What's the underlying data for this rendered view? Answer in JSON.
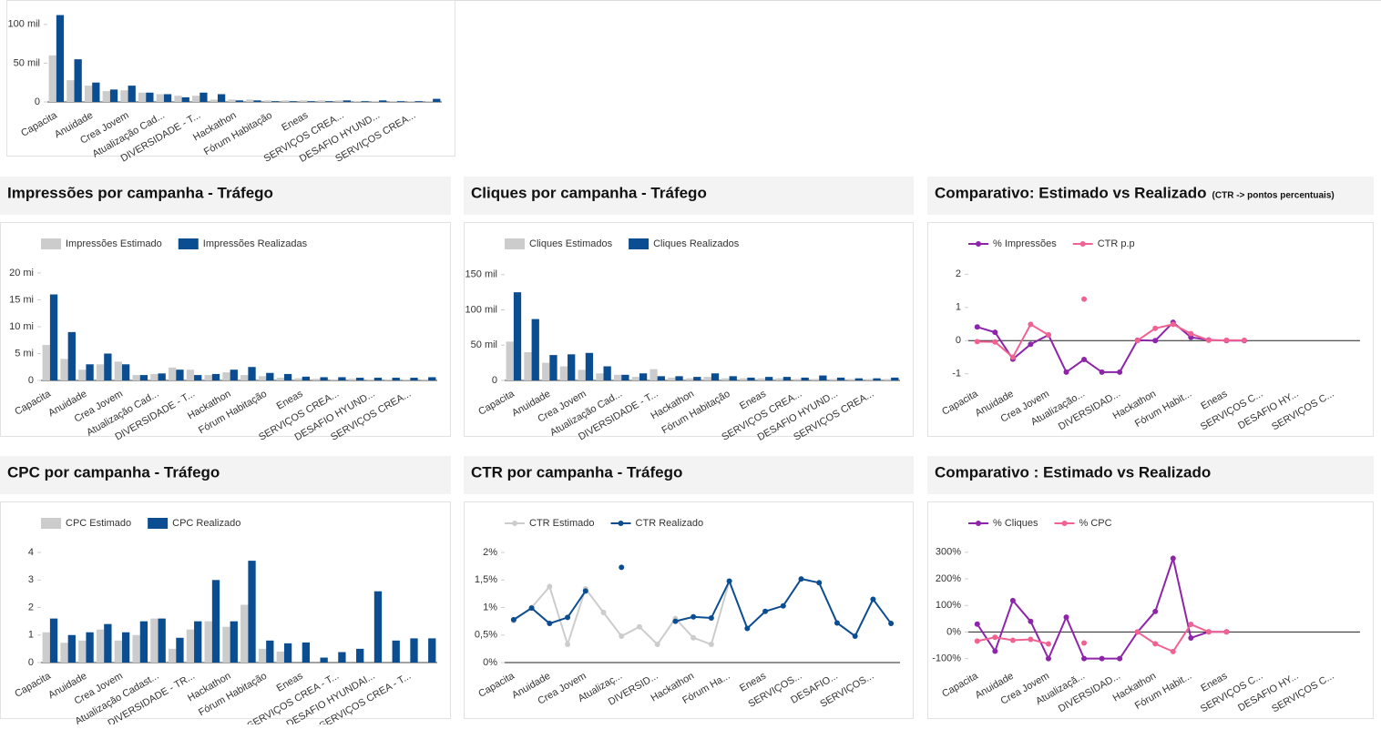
{
  "chart_data": [
    {
      "type": "bar",
      "categories": [
        "Capacita",
        null,
        "Anuidade",
        null,
        "Crea Jovem",
        null,
        "Atualização Cad...",
        null,
        "DIVERSIDADE - T...",
        null,
        "Hackathon",
        null,
        "Fórum Habitação",
        null,
        "Eneas",
        null,
        "SERVIÇOS CREA...",
        null,
        "DESAFIO HYUND...",
        null,
        "SERVIÇOS CREA...",
        null
      ],
      "series": [
        {
          "name": "Impressões Estimado",
          "color": "#cccccc",
          "values": [
            60000,
            28000,
            21000,
            14000,
            15000,
            12000,
            10000,
            8000,
            8000,
            3000,
            3000,
            3000,
            2000,
            2000,
            2000,
            2000,
            2000,
            1000,
            1000,
            1000,
            1000,
            1000
          ]
        },
        {
          "name": "Impressões Realizadas",
          "color": "#0b4d91",
          "values": [
            112000,
            55000,
            25000,
            16000,
            21000,
            12000,
            10000,
            6000,
            12000,
            10000,
            2000,
            2000,
            1000,
            1000,
            1000,
            1000,
            2000,
            1000,
            2000,
            1000,
            1000,
            4000
          ]
        }
      ],
      "ylim": [
        0,
        115000
      ],
      "yticks": [
        0,
        {
          "value": 50000,
          "label": "50 mil"
        },
        {
          "value": 100000,
          "label": "100 mil"
        }
      ]
    },
    {
      "type": "bar",
      "title": "Impressões por campanha - Tráfego",
      "categories": [
        "Capacita",
        null,
        "Anuidade",
        null,
        "Crea Jovem",
        null,
        "Atualização Cad...",
        null,
        "DIVERSIDADE - T...",
        null,
        "Hackathon",
        null,
        "Fórum Habitação",
        null,
        "Eneas",
        null,
        "SERVIÇOS CREA...",
        null,
        "DESAFIO HYUND...",
        null,
        "SERVIÇOS CREA...",
        null
      ],
      "series": [
        {
          "name": "Impressões Estimado",
          "color": "#cccccc",
          "values": [
            6600000,
            4000000,
            2000000,
            3000000,
            3500000,
            1000000,
            1200000,
            2400000,
            2000000,
            1000000,
            1500000,
            1000000,
            800000,
            500000,
            400000,
            300000,
            200000,
            300000,
            200000,
            200000,
            200000,
            200000
          ]
        },
        {
          "name": "Impressões Realizadas",
          "color": "#0b4d91",
          "values": [
            16000000,
            9000000,
            3000000,
            5000000,
            3000000,
            1000000,
            1300000,
            2000000,
            1000000,
            1200000,
            2000000,
            2500000,
            1400000,
            1200000,
            700000,
            600000,
            600000,
            500000,
            500000,
            500000,
            500000,
            600000
          ]
        }
      ],
      "ylim": [
        0,
        21000000
      ],
      "yticks": [
        0,
        {
          "value": 5000000,
          "label": "5 mi"
        },
        {
          "value": 10000000,
          "label": "10 mi"
        },
        {
          "value": 15000000,
          "label": "15 mi"
        },
        {
          "value": 20000000,
          "label": "20 mi"
        }
      ]
    },
    {
      "type": "bar",
      "title": "Cliques por campanha - Tráfego",
      "categories": [
        "Capacita",
        null,
        "Anuidade",
        null,
        "Crea Jovem",
        null,
        "Atualização Cad...",
        null,
        "DIVERSIDADE - T...",
        null,
        "Hackathon",
        null,
        "Fórum Habitação",
        null,
        "Eneas",
        null,
        "SERVIÇOS CREA...",
        null,
        "DESAFIO HYUND...",
        null,
        "SERVIÇOS CREA...",
        null
      ],
      "series": [
        {
          "name": "Cliques Estimados",
          "color": "#cccccc",
          "values": [
            55000,
            40000,
            25000,
            20000,
            15000,
            10000,
            8000,
            5000,
            16000,
            4000,
            3000,
            5000,
            3000,
            3000,
            3000,
            3000,
            2000,
            2000,
            2000,
            2000,
            2000,
            2000
          ]
        },
        {
          "name": "Cliques Realizados",
          "color": "#0b4d91",
          "values": [
            125000,
            87000,
            36000,
            37000,
            39000,
            20000,
            8000,
            10000,
            6000,
            6000,
            5000,
            10000,
            6000,
            4000,
            5000,
            5000,
            4000,
            7000,
            4000,
            3000,
            3000,
            4000
          ]
        }
      ],
      "ylim": [
        0,
        160000
      ],
      "yticks": [
        0,
        {
          "value": 50000,
          "label": "50 mil"
        },
        {
          "value": 100000,
          "label": "100 mil"
        },
        {
          "value": 150000,
          "label": "150 mil"
        }
      ]
    },
    {
      "type": "line",
      "title": "Comparativo: Estimado vs Realizado",
      "subtitle": "(CTR -> pontos percentuais)",
      "categories": [
        "Capacita",
        null,
        "Anuidade",
        null,
        "Crea Jovem",
        null,
        "Atualização...",
        null,
        "DIVERSIDAD...",
        null,
        "Hackathon",
        null,
        "Fórum Habit...",
        null,
        "Eneas",
        null,
        "SERVIÇOS C...",
        null,
        "DESAFIO HY...",
        null,
        "SERVIÇOS C...",
        null
      ],
      "series": [
        {
          "name": "% Impressões",
          "color": "#8e24aa",
          "values": [
            0.41,
            0.25,
            -0.56,
            -0.11,
            0.17,
            -0.95,
            -0.57,
            -0.95,
            -0.95,
            0.01,
            0,
            0.55,
            0.1,
            0.02,
            0,
            0,
            null,
            null,
            null,
            null,
            null,
            null
          ]
        },
        {
          "name": "CTR p.p",
          "color": "#f06292",
          "values": [
            -0.03,
            -0.04,
            -0.5,
            0.49,
            0.17,
            null,
            1.25,
            null,
            null,
            0,
            0.37,
            0.49,
            0.21,
            0.01,
            0.01,
            0.01,
            null,
            null,
            null,
            null,
            null,
            null
          ]
        }
      ],
      "ylim": [
        -1.2,
        2.2
      ],
      "yticks": [
        -1,
        0,
        1,
        2
      ]
    },
    {
      "type": "bar",
      "title": "CPC por campanha - Tráfego",
      "categories": [
        "Capacita",
        null,
        "Anuidade",
        null,
        "Crea Jovem",
        null,
        "Atualização Cadast...",
        null,
        "DIVERSIDADE - TR...",
        null,
        "Hackathon",
        null,
        "Fórum Habitação",
        null,
        "Eneas",
        null,
        "SERVIÇOS CREA - T...",
        null,
        "DESAFIO HYUNDAI...",
        null,
        "SERVIÇOS CREA - T...",
        null
      ],
      "series": [
        {
          "name": "CPC Estimado",
          "color": "#cccccc",
          "values": [
            1.1,
            0.72,
            0.8,
            1.2,
            0.8,
            1.0,
            1.6,
            0.5,
            1.2,
            1.5,
            1.3,
            2.1,
            0.5,
            0.4,
            0,
            0,
            0,
            0,
            0,
            0,
            0,
            0
          ]
        },
        {
          "name": "CPC Realizado",
          "color": "#0b4d91",
          "values": [
            1.6,
            1.0,
            1.1,
            1.4,
            1.1,
            1.5,
            1.6,
            0.9,
            1.5,
            3.0,
            1.5,
            3.7,
            0.8,
            0.7,
            0.73,
            0.18,
            0.38,
            0.5,
            2.59,
            0.8,
            0.88,
            0.88
          ]
        }
      ],
      "ylim": [
        0,
        4.2
      ],
      "yticks": [
        0,
        1,
        2,
        3,
        4
      ]
    },
    {
      "type": "line",
      "title": "CTR por campanha - Tráfego",
      "categories": [
        "Capacita",
        null,
        "Anuidade",
        null,
        "Crea Jovem",
        null,
        "Atualizaç...",
        null,
        "DIVERSID...",
        null,
        "Hackathon",
        null,
        "Fórum Ha...",
        null,
        "Eneas",
        null,
        "SERVIÇOS...",
        null,
        "DESAFIO...",
        null,
        "SERVIÇOS...",
        null
      ],
      "series": [
        {
          "name": "CTR Estimado",
          "color": "#cccccc",
          "values": [
            0.76,
            1.0,
            1.38,
            0.33,
            1.34,
            0.91,
            0.48,
            0.65,
            0.33,
            0.8,
            0.45,
            0.33,
            1.48,
            null,
            null,
            null,
            null,
            null,
            null,
            null,
            null,
            null
          ]
        },
        {
          "name": "CTR Realizado",
          "color": "#0b4d91",
          "values": [
            0.78,
            0.99,
            0.71,
            0.82,
            1.3,
            null,
            1.73,
            null,
            null,
            0.75,
            0.83,
            0.81,
            1.48,
            0.62,
            0.93,
            1.03,
            1.52,
            1.45,
            0.72,
            0.48,
            1.15,
            0.71
          ]
        }
      ],
      "ylim": [
        0,
        2.1
      ],
      "yticks": [
        {
          "value": 0,
          "label": "0%"
        },
        {
          "value": 0.5,
          "label": "0,5%"
        },
        {
          "value": 1,
          "label": "1%"
        },
        {
          "value": 1.5,
          "label": "1,5%"
        },
        {
          "value": 2,
          "label": "2%"
        }
      ]
    },
    {
      "type": "line",
      "title": "Comparativo : Estimado vs Realizado",
      "categories": [
        "Capacita",
        null,
        "Anuidade",
        null,
        "Crea Jovem",
        null,
        "Atualizaçã...",
        null,
        "DIVERSIDAD...",
        null,
        "Hackathon",
        null,
        "Fórum Habit...",
        null,
        "Eneas",
        null,
        "SERVIÇOS C...",
        null,
        "DESAFIO HY...",
        null,
        "SERVIÇOS C...",
        null
      ],
      "series": [
        {
          "name": "% Cliques",
          "color": "#8e24aa",
          "values": [
            29.71,
            -72,
            118.42,
            39.85,
            -100,
            55.81,
            -100,
            -100,
            -100,
            -0.02,
            77.45,
            277.14,
            -22.4,
            0.41,
            0.59,
            null,
            null,
            null,
            null,
            null,
            null,
            null
          ]
        },
        {
          "name": "% CPC",
          "color": "#f06292",
          "values": [
            -34.08,
            -20.13,
            -30.9,
            -27.65,
            -44.97,
            null,
            -41.2,
            null,
            null,
            0,
            -44.39,
            -73.49,
            28.75,
            0.45,
            0.39,
            null,
            null,
            null,
            null,
            null,
            null,
            null
          ]
        }
      ],
      "ylim": [
        -115,
        320
      ],
      "yticks": [
        {
          "value": -100,
          "label": "-100%"
        },
        {
          "value": 0,
          "label": "0%"
        },
        {
          "value": 100,
          "label": "100%"
        },
        {
          "value": 200,
          "label": "200%"
        },
        {
          "value": 300,
          "label": "300%"
        }
      ]
    }
  ]
}
